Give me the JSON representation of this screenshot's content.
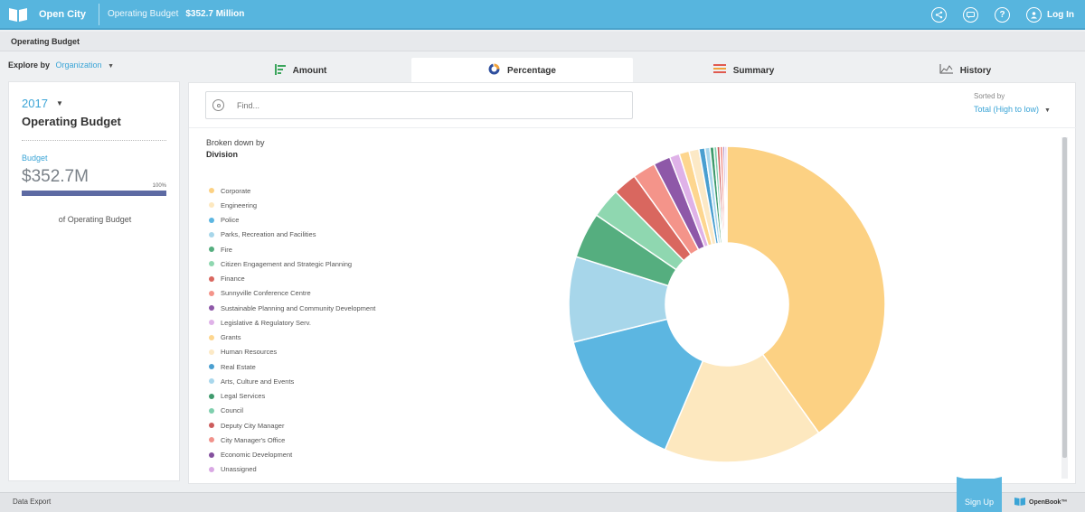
{
  "topbar": {
    "brand": "Open City",
    "crumb_label": "Operating Budget",
    "crumb_value": "$352.7 Million",
    "login_label": "Log In",
    "icons": [
      "share-icon",
      "comment-icon",
      "help-icon",
      "user-icon"
    ],
    "help_glyph": "?",
    "accent": "#57b5de"
  },
  "subheader": {
    "title": "Operating Budget"
  },
  "explore": {
    "label": "Explore by",
    "value": "Organization"
  },
  "tabs": [
    {
      "label": "Amount",
      "icon": "amount-bars-icon"
    },
    {
      "label": "Percentage",
      "icon": "percentage-donut-icon",
      "active": true
    },
    {
      "label": "Summary",
      "icon": "summary-lines-icon"
    },
    {
      "label": "History",
      "icon": "history-chart-icon"
    }
  ],
  "leftcard": {
    "year": "2017",
    "title": "Operating Budget",
    "budget_label": "Budget",
    "budget_value": "$352.7M",
    "pct_label": "100%",
    "bar_fraction": 1.0,
    "of_label": "of Operating Budget"
  },
  "main": {
    "search_placeholder": "Find...",
    "sort_label": "Sorted by",
    "sort_value": "Total (High to low)",
    "breakdown_label": "Broken down by",
    "breakdown_value": "Division"
  },
  "chart_data": {
    "type": "pie",
    "donut": true,
    "labels": [
      "Corporate",
      "Engineering",
      "Police",
      "Parks, Recreation and Facilities",
      "Fire",
      "Citizen Engagement and Strategic Planning",
      "Finance",
      "Sunnyville Conference Centre",
      "Sustainable Planning and Community Development",
      "Legislative & Regulatory Serv.",
      "Grants",
      "Human Resources",
      "Real Estate",
      "Arts, Culture and Events",
      "Legal Services",
      "Council",
      "Deputy City Manager",
      "City Manager's Office",
      "Economic Development",
      "Unassigned"
    ],
    "values": [
      39.5,
      16.0,
      14.5,
      8.6,
      4.6,
      3.0,
      2.4,
      2.3,
      1.7,
      1.0,
      1.0,
      1.0,
      0.6,
      0.5,
      0.4,
      0.3,
      0.3,
      0.3,
      0.2,
      0.2
    ],
    "colors": [
      "#fcd183",
      "#fde8bf",
      "#5cb6e1",
      "#a7d6ea",
      "#55ae7f",
      "#8fd7b0",
      "#d9675f",
      "#f4948a",
      "#8e58a8",
      "#dfb2e8",
      "#fdd68f",
      "#fce9c6",
      "#4a9fd0",
      "#a9d7ec",
      "#3f9a6d",
      "#7fcfae",
      "#cc5c5c",
      "#f1928b",
      "#84509e",
      "#d9a8e4"
    ]
  },
  "footer": {
    "data_export": "Data Export",
    "signup": "Sign Up",
    "openbook": "OpenBook™"
  }
}
